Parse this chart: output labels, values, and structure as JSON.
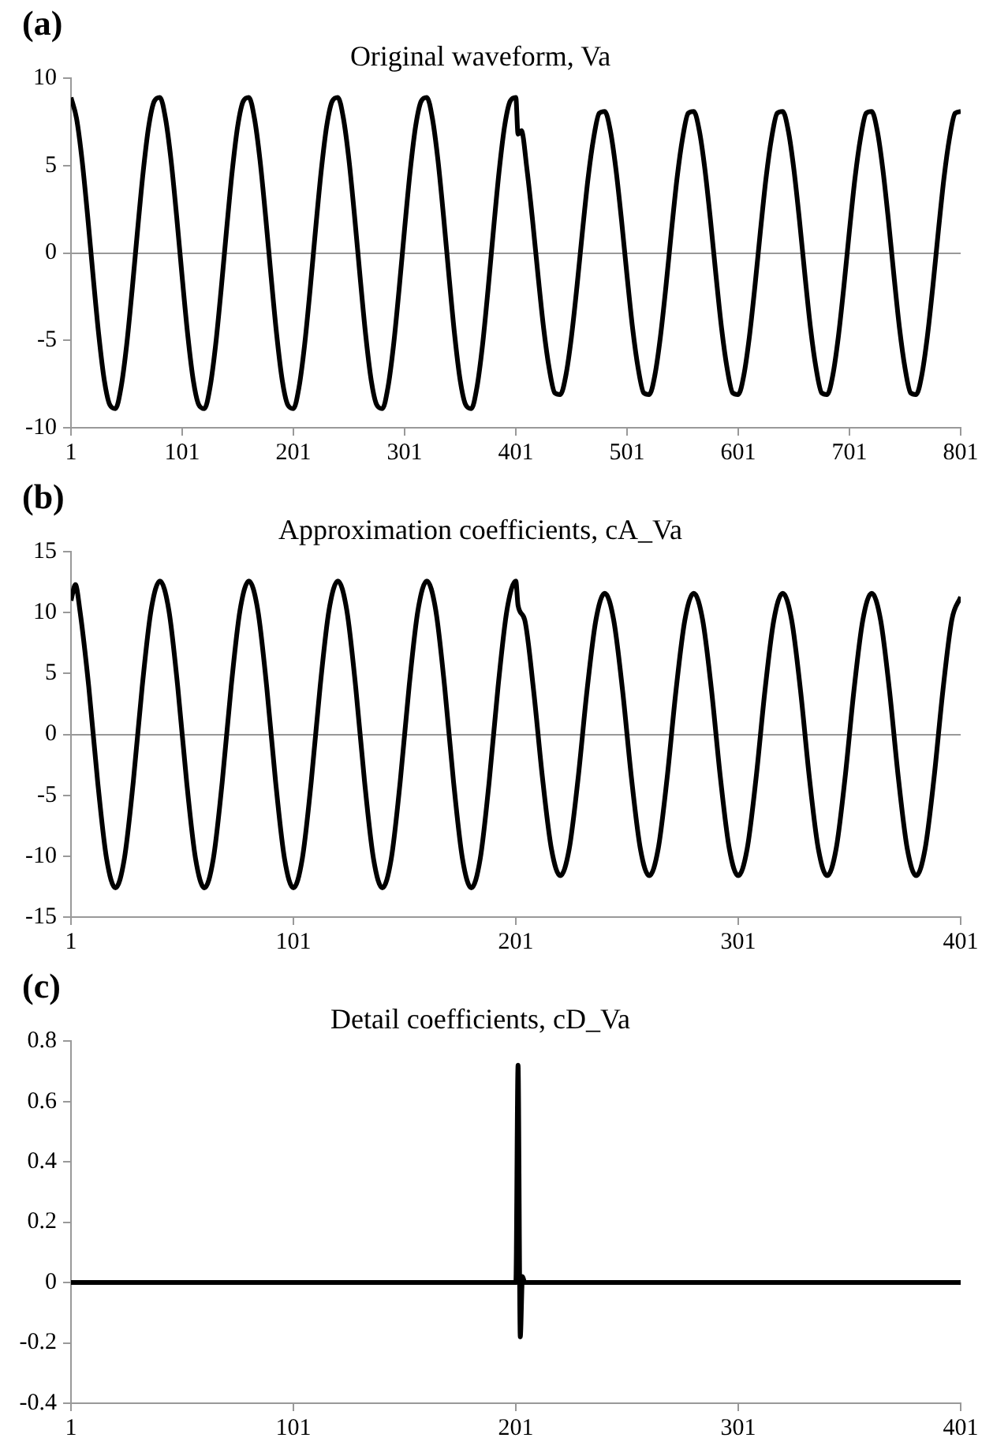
{
  "chart_data": [
    {
      "type": "line",
      "title": "Original waveform, Va",
      "annotations": [
        "(a)"
      ],
      "marker": "none",
      "x": [
        1,
        6,
        11,
        16,
        21,
        26,
        31,
        36,
        41,
        46,
        51,
        56,
        61,
        66,
        71,
        76,
        81,
        86,
        91,
        96,
        101,
        106,
        111,
        116,
        121,
        126,
        131,
        136,
        141,
        146,
        151,
        156,
        161,
        166,
        171,
        176,
        181,
        186,
        191,
        196,
        201,
        206,
        211,
        216,
        221,
        226,
        231,
        236,
        241,
        246,
        251,
        256,
        261,
        266,
        271,
        276,
        281,
        286,
        291,
        296,
        301,
        306,
        311,
        316,
        321,
        326,
        331,
        336,
        341,
        346,
        351,
        356,
        361,
        366,
        371,
        376,
        381,
        386,
        391,
        396,
        401,
        403,
        406,
        411,
        416,
        421,
        426,
        431,
        436,
        441,
        446,
        451,
        456,
        461,
        466,
        471,
        476,
        481,
        486,
        491,
        496,
        501,
        506,
        511,
        516,
        521,
        526,
        531,
        536,
        541,
        546,
        551,
        556,
        561,
        566,
        571,
        576,
        581,
        586,
        591,
        596,
        601,
        606,
        611,
        616,
        621,
        626,
        631,
        636,
        641,
        646,
        651,
        656,
        661,
        666,
        671,
        676,
        681,
        686,
        691,
        696,
        701,
        706,
        711,
        716,
        721,
        726,
        731,
        736,
        741,
        746,
        751,
        756,
        761,
        766,
        771,
        776,
        781,
        786,
        791,
        796,
        801
      ],
      "series": [
        {
          "color": "#000000",
          "values": [
            8.9,
            7.7,
            5.3,
            2.1,
            -1.4,
            -4.7,
            -7.3,
            -8.7,
            -8.9,
            -7.7,
            -5.3,
            -2.1,
            1.4,
            4.7,
            7.3,
            8.7,
            8.9,
            7.7,
            5.3,
            2.1,
            -1.4,
            -4.7,
            -7.3,
            -8.7,
            -8.9,
            -7.7,
            -5.3,
            -2.1,
            1.4,
            4.7,
            7.3,
            8.7,
            8.9,
            7.7,
            5.3,
            2.1,
            -1.4,
            -4.7,
            -7.3,
            -8.7,
            -8.9,
            -7.7,
            -5.3,
            -2.1,
            1.4,
            4.7,
            7.3,
            8.7,
            8.9,
            7.7,
            5.3,
            2.1,
            -1.4,
            -4.7,
            -7.3,
            -8.7,
            -8.9,
            -7.7,
            -5.3,
            -2.1,
            1.4,
            4.7,
            7.3,
            8.7,
            8.9,
            7.7,
            5.3,
            2.1,
            -1.4,
            -4.7,
            -7.3,
            -8.7,
            -8.9,
            -7.7,
            -5.3,
            -2.1,
            1.4,
            4.7,
            7.3,
            8.7,
            8.9,
            6.8,
            7.0,
            4.8,
            1.9,
            -1.3,
            -4.3,
            -6.6,
            -8.0,
            -8.1,
            -7.0,
            -4.8,
            -1.9,
            1.3,
            4.3,
            6.6,
            8.0,
            8.1,
            7.0,
            4.8,
            1.9,
            -1.3,
            -4.3,
            -6.6,
            -8.0,
            -8.1,
            -7.0,
            -4.8,
            -1.9,
            1.3,
            4.3,
            6.6,
            8.0,
            8.1,
            7.0,
            4.8,
            1.9,
            -1.3,
            -4.3,
            -6.6,
            -8.0,
            -8.1,
            -7.0,
            -4.8,
            -1.9,
            1.3,
            4.3,
            6.6,
            8.0,
            8.1,
            7.0,
            4.8,
            1.9,
            -1.3,
            -4.3,
            -6.6,
            -8.0,
            -8.1,
            -7.0,
            -4.8,
            -1.9,
            1.3,
            4.3,
            6.6,
            8.0,
            8.1,
            7.0,
            4.8,
            1.9,
            -1.3,
            -4.3,
            -6.6,
            -8.0,
            -8.1,
            -7.0,
            -4.8,
            -1.9,
            1.3,
            4.3,
            6.6,
            8.0,
            8.1
          ]
        }
      ],
      "xlim": [
        1,
        801
      ],
      "xticks": [
        1,
        101,
        201,
        301,
        401,
        501,
        601,
        701,
        801
      ],
      "ylim": [
        -10,
        10
      ],
      "yticks": [
        -10,
        -5,
        0,
        5,
        10
      ]
    },
    {
      "type": "line",
      "title": "Approximation coefficients, cA_Va",
      "annotations": [
        "(b)"
      ],
      "marker": "none",
      "x": [
        1,
        3,
        5,
        9,
        13,
        17,
        21,
        25,
        29,
        33,
        37,
        41,
        45,
        49,
        53,
        57,
        61,
        65,
        69,
        73,
        77,
        81,
        85,
        89,
        93,
        97,
        101,
        105,
        109,
        113,
        117,
        121,
        125,
        129,
        133,
        137,
        141,
        145,
        149,
        153,
        157,
        161,
        165,
        169,
        173,
        177,
        181,
        185,
        189,
        193,
        197,
        201,
        202,
        205,
        209,
        213,
        217,
        221,
        225,
        229,
        233,
        237,
        241,
        245,
        249,
        253,
        257,
        261,
        265,
        269,
        273,
        277,
        281,
        285,
        289,
        293,
        297,
        301,
        305,
        309,
        313,
        317,
        321,
        325,
        329,
        333,
        337,
        341,
        345,
        349,
        353,
        357,
        361,
        365,
        369,
        373,
        377,
        381,
        385,
        389,
        393,
        397,
        401
      ],
      "series": [
        {
          "color": "#000000",
          "values": [
            11.0,
            12.3,
            10.2,
            3.9,
            -3.9,
            -10.2,
            -12.6,
            -10.2,
            -3.9,
            3.9,
            10.2,
            12.6,
            10.2,
            3.9,
            -3.9,
            -10.2,
            -12.6,
            -10.2,
            -3.9,
            3.9,
            10.2,
            12.6,
            10.2,
            3.9,
            -3.9,
            -10.2,
            -12.6,
            -10.2,
            -3.9,
            3.9,
            10.2,
            12.6,
            10.2,
            3.9,
            -3.9,
            -10.2,
            -12.6,
            -10.2,
            -3.9,
            3.9,
            10.2,
            12.6,
            10.2,
            3.9,
            -3.9,
            -10.2,
            -12.6,
            -10.2,
            -3.9,
            3.9,
            10.2,
            12.6,
            10.6,
            9.4,
            3.6,
            -3.6,
            -9.4,
            -11.6,
            -9.4,
            -3.6,
            3.6,
            9.4,
            11.6,
            9.4,
            3.6,
            -3.6,
            -9.4,
            -11.6,
            -9.4,
            -3.6,
            3.6,
            9.4,
            11.6,
            9.4,
            3.6,
            -3.6,
            -9.4,
            -11.6,
            -9.4,
            -3.6,
            3.6,
            9.4,
            11.6,
            9.4,
            3.6,
            -3.6,
            -9.4,
            -11.6,
            -9.4,
            -3.6,
            3.6,
            9.4,
            11.6,
            9.4,
            3.6,
            -3.6,
            -9.4,
            -11.6,
            -9.4,
            -3.6,
            3.6,
            9.4,
            11.3
          ]
        }
      ],
      "xlim": [
        1,
        401
      ],
      "xticks": [
        1,
        101,
        201,
        301,
        401
      ],
      "ylim": [
        -15,
        15
      ],
      "yticks": [
        -15,
        -10,
        -5,
        0,
        5,
        10,
        15
      ]
    },
    {
      "type": "line",
      "title": "Detail coefficients, cD_Va",
      "annotations": [
        "(c)"
      ],
      "marker": "none",
      "x": [
        1,
        3,
        200,
        201,
        202,
        203,
        204,
        205,
        401
      ],
      "series": [
        {
          "color": "#000000",
          "values": [
            0,
            0,
            0,
            0,
            0.72,
            -0.18,
            0.02,
            0,
            0
          ]
        }
      ],
      "xlim": [
        1,
        401
      ],
      "xticks": [
        1,
        101,
        201,
        301,
        401
      ],
      "ylim": [
        -0.4,
        0.8
      ],
      "yticks": [
        -0.4,
        -0.2,
        0,
        0.2,
        0.4,
        0.6,
        0.8
      ]
    }
  ]
}
